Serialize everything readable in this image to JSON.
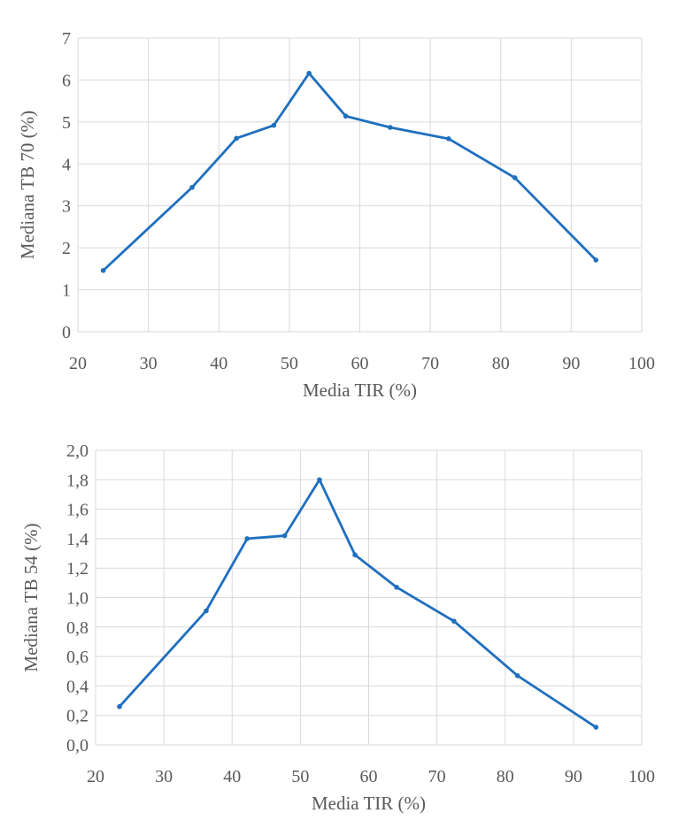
{
  "chart_data": [
    {
      "type": "line",
      "title": "",
      "xlabel": "Media TIR (%)",
      "ylabel": "Mediana TB 70 (%)",
      "xlim": [
        20,
        100
      ],
      "ylim": [
        0,
        7
      ],
      "xticks": [
        "20",
        "30",
        "40",
        "50",
        "60",
        "70",
        "80",
        "90",
        "100"
      ],
      "yticks": [
        "0",
        "1",
        "2",
        "3",
        "4",
        "5",
        "6",
        "7"
      ],
      "grid": true,
      "color": "#1f6fbf",
      "series": [
        {
          "name": "TB 70",
          "x": [
            23.6,
            36.2,
            42.5,
            47.8,
            52.8,
            58.0,
            64.3,
            72.6,
            82.0,
            93.5
          ],
          "y": [
            1.46,
            3.44,
            4.61,
            4.92,
            6.16,
            5.14,
            4.87,
            4.6,
            3.67,
            1.71
          ]
        }
      ]
    },
    {
      "type": "line",
      "title": "",
      "xlabel": "Media TIR (%)",
      "ylabel": "Mediana TB 54 (%)",
      "xlim": [
        20,
        100
      ],
      "ylim": [
        0,
        2
      ],
      "xticks": [
        "20",
        "30",
        "40",
        "50",
        "60",
        "70",
        "80",
        "90",
        "100"
      ],
      "yticks": [
        "0,0",
        "0,2",
        "0,4",
        "0,6",
        "0,8",
        "1,0",
        "1,2",
        "1,4",
        "1,6",
        "1,8",
        "2,0"
      ],
      "grid": true,
      "color": "#1f6fbf",
      "series": [
        {
          "name": "TB 54",
          "x": [
            23.5,
            36.2,
            42.2,
            47.7,
            52.8,
            58.0,
            64.1,
            72.5,
            81.8,
            93.3
          ],
          "y": [
            0.26,
            0.91,
            1.4,
            1.42,
            1.8,
            1.29,
            1.07,
            0.84,
            0.47,
            0.12
          ]
        }
      ]
    }
  ]
}
